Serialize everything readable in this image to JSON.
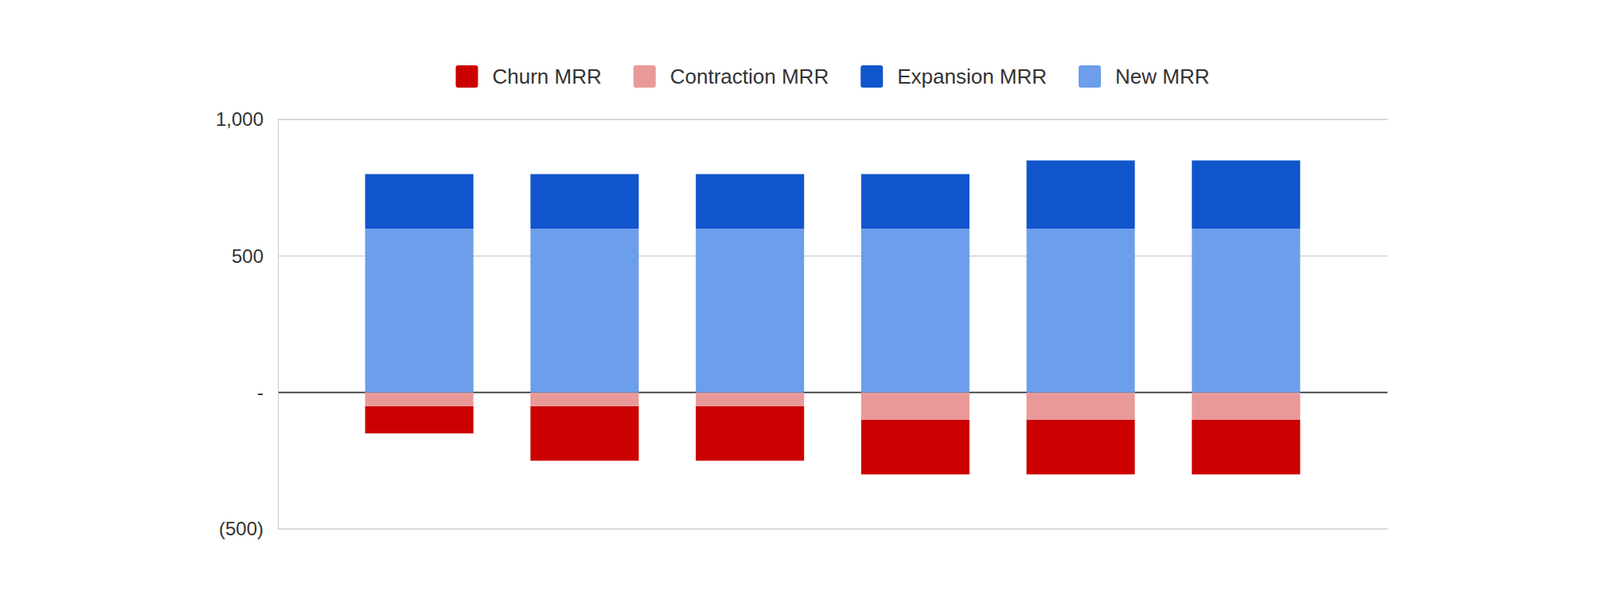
{
  "chart_data": {
    "type": "bar",
    "stacked": true,
    "categories": [
      null,
      null,
      null,
      null,
      null,
      null
    ],
    "series": [
      {
        "name": "Churn MRR",
        "color": "#cc0000",
        "values": [
          -100,
          -200,
          -200,
          -200,
          -200,
          -200
        ]
      },
      {
        "name": "Contraction MRR",
        "color": "#ea9999",
        "values": [
          -50,
          -50,
          -50,
          -100,
          -100,
          -100
        ]
      },
      {
        "name": "Expansion MRR",
        "color": "#1155cc",
        "values": [
          200,
          200,
          200,
          200,
          250,
          250
        ]
      },
      {
        "name": "New MRR",
        "color": "#6d9eeb",
        "values": [
          600,
          600,
          600,
          600,
          600,
          600
        ]
      }
    ],
    "ylim": [
      -500,
      1000
    ],
    "yticks": [
      {
        "value": -500,
        "label": "(500)"
      },
      {
        "value": 0,
        "label": "-"
      },
      500,
      {
        "value": 1000,
        "label": "1,000"
      }
    ],
    "grid": true,
    "legend": "top",
    "tick_labels": "y"
  }
}
